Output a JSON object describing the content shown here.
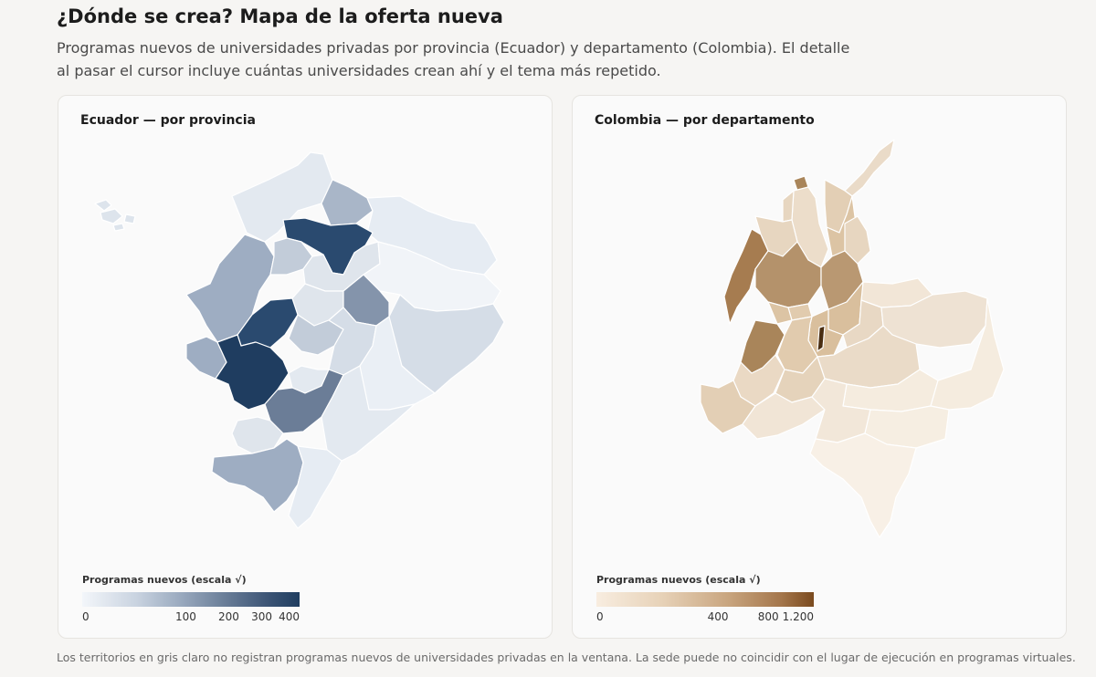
{
  "header": {
    "title": "¿Dónde se crea? Mapa de la oferta nueva",
    "subtitle": "Programas nuevos de universidades privadas por provincia (Ecuador) y departamento (Colombia). El detalle al pasar el cursor incluye cuántas universidades crean ahí y el tema más repetido."
  },
  "ecuador": {
    "title": "Ecuador — por provincia",
    "legend": {
      "title": "Programas nuevos (escala √)",
      "ticks": [
        "0",
        "100",
        "200",
        "300",
        "400"
      ],
      "tick_values": [
        0,
        100,
        200,
        300,
        400
      ],
      "max": 440,
      "colors": [
        "#f3f6fa",
        "#c9d3e0",
        "#9aaabf",
        "#6b7f99",
        "#3d5576",
        "#1f3d60"
      ]
    }
  },
  "colombia": {
    "title": "Colombia — por departamento",
    "legend": {
      "title": "Programas nuevos (escala √)",
      "ticks": [
        "0",
        "400",
        "800",
        "1.200"
      ],
      "tick_values": [
        0,
        400,
        800,
        1200
      ],
      "max": 1280,
      "colors": [
        "#f8ede0",
        "#e7d2b8",
        "#c9a680",
        "#a4764b",
        "#7a4a1e"
      ]
    }
  },
  "footnote": "Los territorios en gris claro no registran programas nuevos de universidades privadas en la ventana. La sede puede no coincidir con el lugar de ejecución en programas virtuales."
}
